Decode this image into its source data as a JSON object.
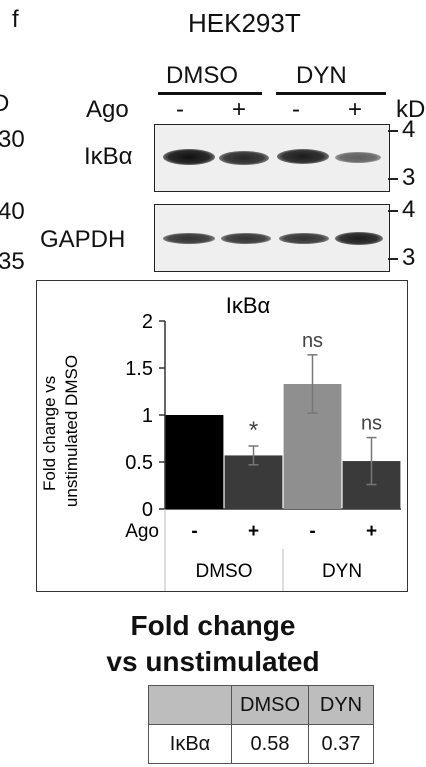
{
  "figure": {
    "panel_letter": "f",
    "title": "HEK293T",
    "left_cut_labels": [
      "D",
      "30",
      "40",
      "35"
    ],
    "conditions": [
      "DMSO",
      "DYN"
    ],
    "ago_label": "Ago",
    "ago_signs": [
      "-",
      "+",
      "-",
      "+"
    ],
    "kd_label": "kD",
    "blots": [
      {
        "name": "IκBα",
        "marker_top": "4",
        "marker_bottom": "3",
        "band_intensity": [
          1.0,
          0.85,
          0.9,
          0.55
        ]
      },
      {
        "name": "GAPDH",
        "marker_top": "4",
        "marker_bottom": "3",
        "band_intensity": [
          0.85,
          0.85,
          0.85,
          0.95
        ]
      }
    ]
  },
  "chart_data": {
    "type": "bar",
    "title": "IκBα",
    "ylabel": "Fold change vs unstimulated DMSO",
    "ylim": [
      0,
      2
    ],
    "yticks": [
      "0",
      "0.5",
      "1",
      "1.5",
      "2"
    ],
    "categories": [
      "DMSO -",
      "DMSO +",
      "DYN -",
      "DYN +"
    ],
    "values": [
      1.0,
      0.57,
      1.33,
      0.51
    ],
    "errors": [
      0.0,
      0.1,
      0.31,
      0.25
    ],
    "significance": [
      "",
      "*",
      "ns",
      "ns"
    ],
    "colors": [
      "#000000",
      "#3a3a3a",
      "#8f8f8f",
      "#3a3a3a"
    ],
    "ago_label": "Ago",
    "ago_signs": [
      "-",
      "+",
      "-",
      "+"
    ],
    "groups": [
      "DMSO",
      "DYN"
    ]
  },
  "summary": {
    "heading_line1": "Fold change",
    "heading_line2": "vs unstimulated",
    "table": {
      "headers": [
        "DMSO",
        "DYN"
      ],
      "row_label": "IκBα",
      "row_values": [
        "0.58",
        "0.37"
      ]
    }
  }
}
